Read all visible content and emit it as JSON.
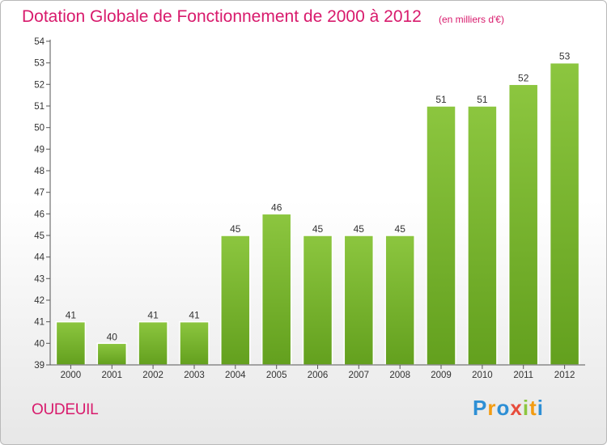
{
  "chart_data": {
    "type": "bar",
    "title": "Dotation Globale de Fonctionnement de 2000 à 2012",
    "subtitle": "(en milliers d'€)",
    "categories": [
      "2000",
      "2001",
      "2002",
      "2003",
      "2004",
      "2005",
      "2006",
      "2007",
      "2008",
      "2009",
      "2010",
      "2011",
      "2012"
    ],
    "values": [
      41,
      40,
      41,
      41,
      45,
      46,
      45,
      45,
      45,
      51,
      51,
      52,
      53
    ],
    "data_labels": [
      "41",
      "40",
      "41",
      "41",
      "45",
      "46",
      "45",
      "45",
      "45",
      "51",
      "51",
      "52",
      "53"
    ],
    "ylim": [
      39,
      54
    ],
    "yticks": [
      39,
      40,
      41,
      42,
      43,
      44,
      45,
      46,
      47,
      48,
      49,
      50,
      51,
      52,
      53,
      54
    ],
    "xlabel": "",
    "ylabel": "",
    "grid": false,
    "bar_color": "#8cc63f",
    "bar_color_dark": "#63a01e"
  },
  "commune": "OUDEUIL",
  "logo": {
    "letters": [
      "P",
      "r",
      "o",
      "x",
      "i",
      "t",
      "i"
    ],
    "colors": [
      "#2d8fd5",
      "#f39c12",
      "#2d8fd5",
      "#e74c3c",
      "#8cc63f",
      "#f39c12",
      "#2d8fd5"
    ]
  },
  "colors": {
    "title": "#d81a6c",
    "axis": "#333333"
  }
}
